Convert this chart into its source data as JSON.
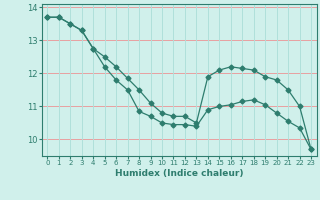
{
  "xlabel": "Humidex (Indice chaleur)",
  "x_values": [
    0,
    1,
    2,
    3,
    4,
    5,
    6,
    7,
    8,
    9,
    10,
    11,
    12,
    13,
    14,
    15,
    16,
    17,
    18,
    19,
    20,
    21,
    22,
    23
  ],
  "line1_y": [
    13.7,
    13.7,
    13.5,
    13.3,
    12.75,
    12.2,
    11.8,
    11.5,
    10.85,
    10.7,
    10.5,
    10.45,
    10.45,
    10.4,
    10.9,
    11.0,
    11.05,
    11.15,
    11.2,
    11.05,
    10.8,
    10.55,
    10.35,
    9.7
  ],
  "line2_y": [
    13.7,
    13.7,
    13.5,
    13.3,
    12.75,
    12.5,
    12.2,
    11.85,
    11.5,
    11.1,
    10.8,
    10.7,
    10.7,
    10.5,
    11.9,
    12.1,
    12.2,
    12.15,
    12.1,
    11.9,
    11.8,
    11.5,
    11.0,
    9.7
  ],
  "line_color": "#2e7d6e",
  "bg_color": "#d0f0eb",
  "grid_color_v": "#b0e0da",
  "grid_color_h": "#e8a0a0",
  "ylim": [
    9.5,
    14.1
  ],
  "yticks": [
    10,
    11,
    12,
    13,
    14
  ],
  "marker": "D",
  "marker_size": 2.5,
  "linewidth": 0.9
}
